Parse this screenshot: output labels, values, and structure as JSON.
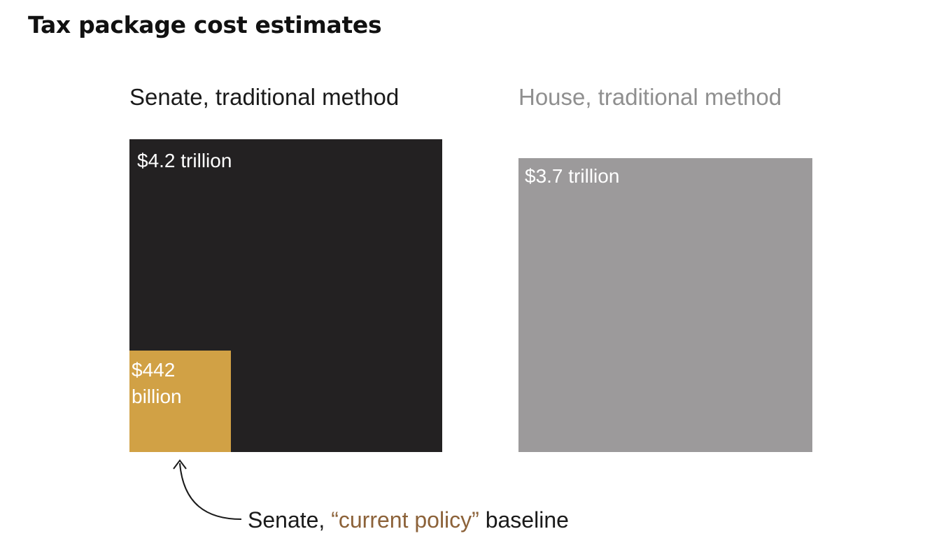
{
  "chart_data": {
    "type": "area-square",
    "title": "Tax package cost estimates",
    "unit": "billion dollars",
    "panels": [
      {
        "label": "Senate, traditional method",
        "value": 4200,
        "value_label": "$4.2 trillion",
        "color": "#232122",
        "label_color": "#1a1a1a",
        "inset": {
          "value": 442,
          "value_label": "$442 billion",
          "color": "#d1a145"
        }
      },
      {
        "label": "House, traditional method",
        "value": 3700,
        "value_label": "$3.7 trillion",
        "color": "#9c9a9b",
        "label_color": "#8f8f8f"
      }
    ],
    "annotation": {
      "prefix": "Senate, ",
      "highlight": "“current policy”",
      "suffix": " baseline",
      "highlight_color": "#8c6239"
    }
  }
}
